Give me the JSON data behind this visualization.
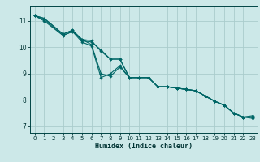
{
  "xlabel": "Humidex (Indice chaleur)",
  "background_color": "#cce8e8",
  "grid_color": "#aacccc",
  "line_color": "#006666",
  "xlim": [
    -0.5,
    23.5
  ],
  "ylim": [
    6.75,
    11.55
  ],
  "xticks": [
    0,
    1,
    2,
    3,
    4,
    5,
    6,
    7,
    8,
    9,
    10,
    11,
    12,
    13,
    14,
    15,
    16,
    17,
    18,
    19,
    20,
    21,
    22,
    23
  ],
  "yticks": [
    7,
    8,
    9,
    10,
    11
  ],
  "lines": [
    {
      "x": [
        0,
        1,
        3,
        4,
        5,
        6,
        7,
        8,
        9,
        10,
        11,
        12,
        13,
        14,
        15,
        16,
        17,
        18,
        19,
        20,
        21,
        22,
        23
      ],
      "y": [
        11.2,
        11.1,
        10.5,
        10.65,
        10.3,
        10.25,
        9.85,
        9.55,
        9.55,
        8.85,
        8.85,
        8.85,
        8.5,
        8.5,
        8.45,
        8.4,
        8.35,
        8.15,
        7.95,
        7.8,
        7.5,
        7.35,
        7.35
      ]
    },
    {
      "x": [
        0,
        1,
        3,
        4,
        5,
        6,
        7,
        8,
        9,
        10,
        11,
        12,
        13,
        14,
        15,
        16,
        17,
        18,
        19,
        20,
        21,
        22,
        23
      ],
      "y": [
        11.2,
        11.1,
        10.5,
        10.65,
        10.25,
        10.2,
        9.9,
        9.55,
        9.55,
        8.85,
        8.85,
        8.85,
        8.5,
        8.5,
        8.45,
        8.4,
        8.35,
        8.15,
        7.95,
        7.8,
        7.5,
        7.35,
        7.35
      ]
    },
    {
      "x": [
        0,
        1,
        3,
        4,
        5,
        6,
        7,
        8,
        9,
        10,
        11,
        12,
        13,
        14,
        15,
        16,
        17,
        18,
        19,
        20,
        21,
        22,
        23
      ],
      "y": [
        11.2,
        11.05,
        10.45,
        10.6,
        10.3,
        10.1,
        9.0,
        8.9,
        9.25,
        8.85,
        8.85,
        8.85,
        8.5,
        8.5,
        8.45,
        8.4,
        8.35,
        8.15,
        7.95,
        7.8,
        7.5,
        7.35,
        7.3
      ]
    },
    {
      "x": [
        0,
        1,
        3,
        4,
        5,
        6,
        7,
        8,
        9,
        10,
        11,
        12,
        13,
        14,
        15,
        16,
        17,
        18,
        19,
        20,
        21,
        22,
        23
      ],
      "y": [
        11.2,
        11.0,
        10.45,
        10.6,
        10.2,
        10.05,
        8.85,
        9.0,
        9.3,
        8.85,
        8.85,
        8.85,
        8.5,
        8.5,
        8.45,
        8.4,
        8.35,
        8.15,
        7.95,
        7.8,
        7.5,
        7.35,
        7.4
      ]
    }
  ]
}
